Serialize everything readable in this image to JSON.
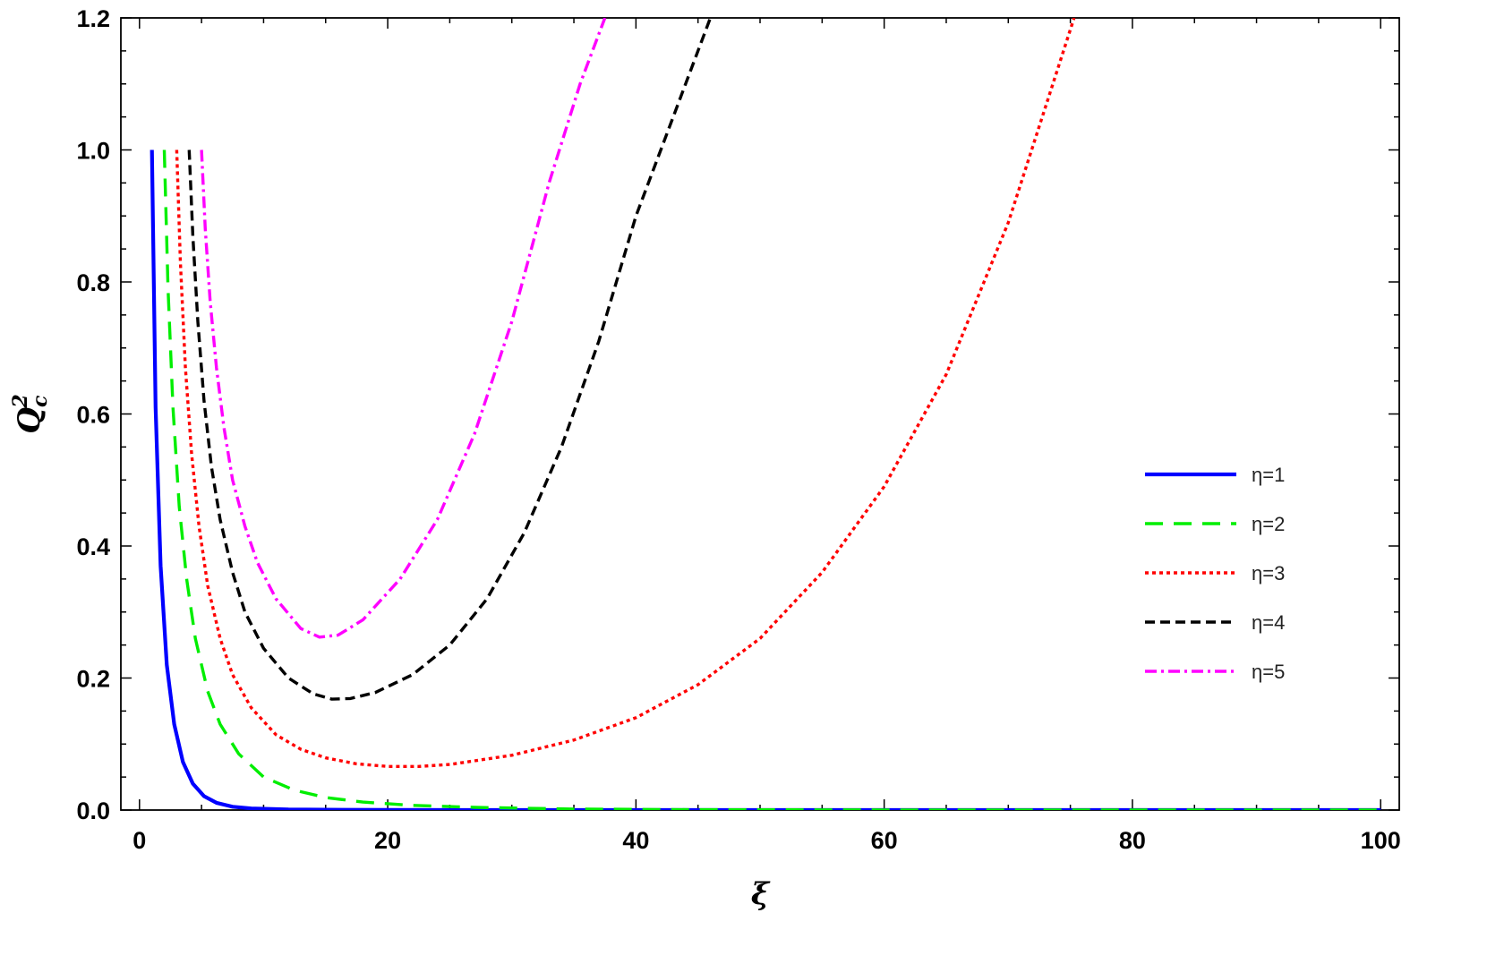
{
  "chart_data": {
    "type": "line",
    "title": "",
    "xlabel": "ξ",
    "ylabel_base": "Q",
    "ylabel_sub": "c",
    "ylabel_sup": "2",
    "xlim": [
      -1.5,
      101.5
    ],
    "ylim": [
      0,
      1.2
    ],
    "x_ticks": [
      {
        "value": 0,
        "label": "0"
      },
      {
        "value": 20,
        "label": "20"
      },
      {
        "value": 40,
        "label": "40"
      },
      {
        "value": 60,
        "label": "60"
      },
      {
        "value": 80,
        "label": "80"
      },
      {
        "value": 100,
        "label": "100"
      }
    ],
    "y_ticks": [
      {
        "value": 0,
        "label": "0.0"
      },
      {
        "value": 0.2,
        "label": "0.2"
      },
      {
        "value": 0.4,
        "label": "0.4"
      },
      {
        "value": 0.6,
        "label": "0.6"
      },
      {
        "value": 0.8,
        "label": "0.8"
      },
      {
        "value": 1.0,
        "label": "1.0"
      },
      {
        "value": 1.2,
        "label": "1.2"
      }
    ],
    "grid": false,
    "legend_position": "right",
    "series": [
      {
        "name": "η=1",
        "color": "#0000ff",
        "style": "solid",
        "x": [
          1.0,
          1.3,
          1.7,
          2.2,
          2.8,
          3.5,
          4.3,
          5.2,
          6.2,
          7.5,
          9,
          12,
          20,
          40,
          60,
          80,
          100
        ],
        "y": [
          1.0,
          0.61,
          0.37,
          0.22,
          0.13,
          0.073,
          0.04,
          0.021,
          0.011,
          0.005,
          0.0025,
          0.0008,
          0.0001,
          0.0,
          0.0,
          0.0,
          0.0
        ]
      },
      {
        "name": "η=2",
        "color": "#00ee00",
        "style": "dashed",
        "x": [
          2.0,
          2.3,
          2.7,
          3.2,
          3.8,
          4.5,
          5.5,
          6.5,
          8,
          10,
          12.5,
          15,
          18,
          22,
          27,
          35,
          45,
          60,
          80,
          100
        ],
        "y": [
          1.0,
          0.79,
          0.61,
          0.46,
          0.35,
          0.26,
          0.18,
          0.13,
          0.085,
          0.05,
          0.03,
          0.019,
          0.012,
          0.007,
          0.004,
          0.0015,
          0.0005,
          0.0001,
          0.0,
          0.0
        ]
      },
      {
        "name": "η=3",
        "color": "#ff0000",
        "style": "dotted",
        "x": [
          3.0,
          3.3,
          3.7,
          4.2,
          4.8,
          5.5,
          6.5,
          7.5,
          9,
          11,
          13,
          15,
          17.5,
          20,
          22.5,
          25,
          30,
          35,
          40,
          45,
          50,
          55,
          60,
          65,
          70,
          75.3
        ],
        "y": [
          1.0,
          0.83,
          0.67,
          0.54,
          0.43,
          0.34,
          0.26,
          0.205,
          0.155,
          0.114,
          0.092,
          0.079,
          0.07,
          0.066,
          0.066,
          0.069,
          0.083,
          0.106,
          0.14,
          0.19,
          0.26,
          0.36,
          0.49,
          0.66,
          0.89,
          1.2
        ]
      },
      {
        "name": "η=4",
        "color": "#000000",
        "style": "dashed-short",
        "x": [
          4.0,
          4.3,
          4.7,
          5.2,
          5.8,
          6.5,
          7.5,
          8.5,
          10,
          12,
          14,
          15.5,
          17,
          19,
          22,
          25,
          28,
          31,
          34,
          37,
          40,
          43,
          46
        ],
        "y": [
          1.0,
          0.87,
          0.74,
          0.62,
          0.52,
          0.44,
          0.36,
          0.3,
          0.245,
          0.2,
          0.176,
          0.168,
          0.169,
          0.178,
          0.205,
          0.25,
          0.32,
          0.42,
          0.55,
          0.71,
          0.9,
          1.05,
          1.2
        ]
      },
      {
        "name": "η=5",
        "color": "#ff00ff",
        "style": "dash-dot",
        "x": [
          5.0,
          5.3,
          5.7,
          6.2,
          6.8,
          7.5,
          8.5,
          9.5,
          11,
          13,
          14.5,
          16,
          18,
          21,
          24,
          27,
          30,
          33,
          35.5,
          37.5
        ],
        "y": [
          1.0,
          0.88,
          0.77,
          0.67,
          0.58,
          0.5,
          0.43,
          0.375,
          0.32,
          0.275,
          0.262,
          0.265,
          0.288,
          0.35,
          0.44,
          0.57,
          0.74,
          0.95,
          1.1,
          1.2
        ]
      }
    ]
  }
}
